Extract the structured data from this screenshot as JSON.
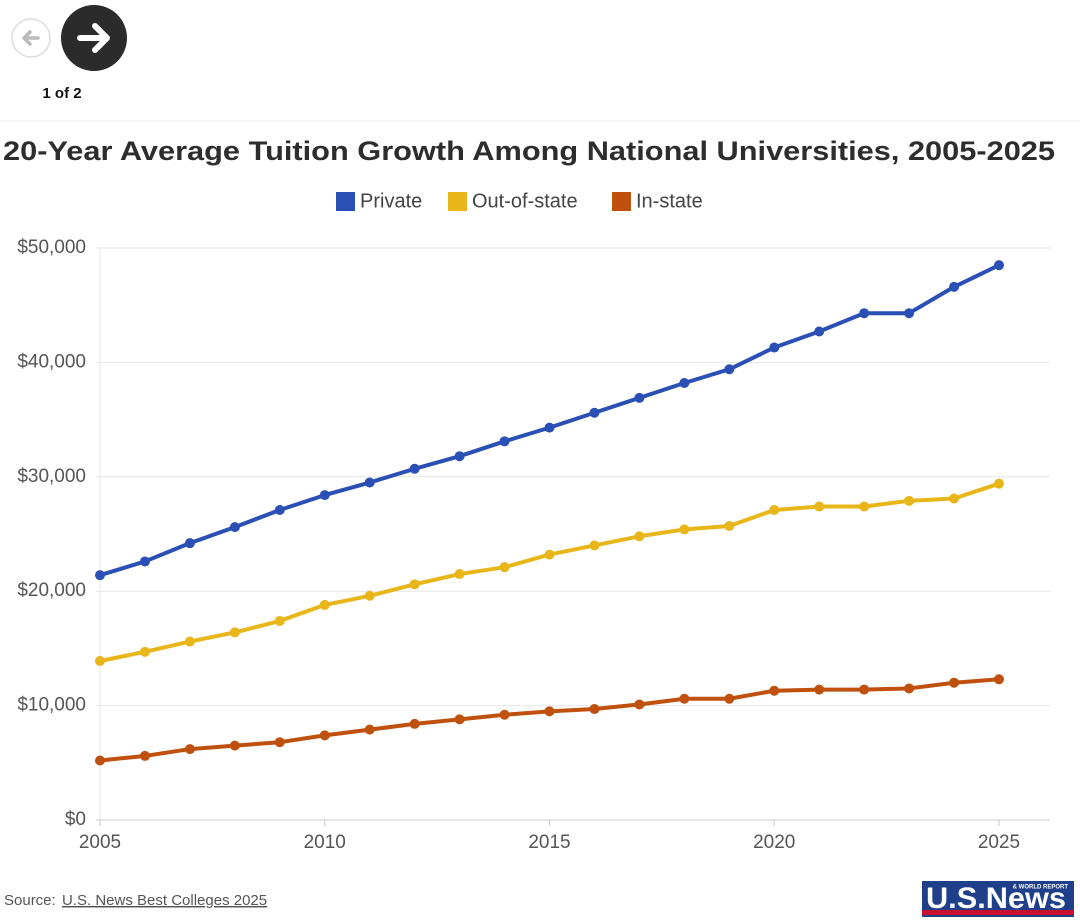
{
  "pager": "1 of 2",
  "source": {
    "prefix": "Source:",
    "link": "U.S. News Best Colleges 2025"
  },
  "logo": {
    "name": "U.S.News",
    "tag": "& WORLD REPORT"
  },
  "chart_data": {
    "type": "line",
    "title": "20-Year Average Tuition Growth Among National Universities, 2005-2025",
    "x": [
      2005,
      2006,
      2007,
      2008,
      2009,
      2010,
      2011,
      2012,
      2013,
      2014,
      2015,
      2016,
      2017,
      2018,
      2019,
      2020,
      2021,
      2022,
      2023,
      2024,
      2025
    ],
    "series": [
      {
        "name": "Private",
        "color": "#2a4fb5",
        "values": [
          21400,
          22600,
          24200,
          25600,
          27100,
          28400,
          29500,
          30700,
          31800,
          33100,
          34300,
          35600,
          36900,
          38200,
          39400,
          41300,
          42700,
          44300,
          44300,
          46600,
          48500
        ]
      },
      {
        "name": "Out-of-state",
        "color": "#e8b618",
        "values": [
          13900,
          14700,
          15600,
          16400,
          17400,
          18800,
          19600,
          20600,
          21500,
          22100,
          23200,
          24000,
          24800,
          25400,
          25700,
          27100,
          27400,
          27400,
          27900,
          28100,
          29400
        ]
      },
      {
        "name": "In-state",
        "color": "#c0500e",
        "values": [
          5200,
          5600,
          6200,
          6500,
          6800,
          7400,
          7900,
          8400,
          8800,
          9200,
          9500,
          9700,
          10100,
          10600,
          10600,
          11300,
          11400,
          11400,
          11500,
          12000,
          12300
        ]
      }
    ],
    "xlim": [
      2005,
      2025
    ],
    "xticks": [
      2005,
      2010,
      2015,
      2020,
      2025
    ],
    "ylim": [
      0,
      50000
    ],
    "yticks": [
      {
        "value": 0,
        "label": "$0"
      },
      {
        "value": 10000,
        "label": "$10,000"
      },
      {
        "value": 20000,
        "label": "$20,000"
      },
      {
        "value": 30000,
        "label": "$30,000"
      },
      {
        "value": 40000,
        "label": "$40,000"
      },
      {
        "value": 50000,
        "label": "$50,000"
      }
    ],
    "grid": true,
    "legend": "top"
  }
}
